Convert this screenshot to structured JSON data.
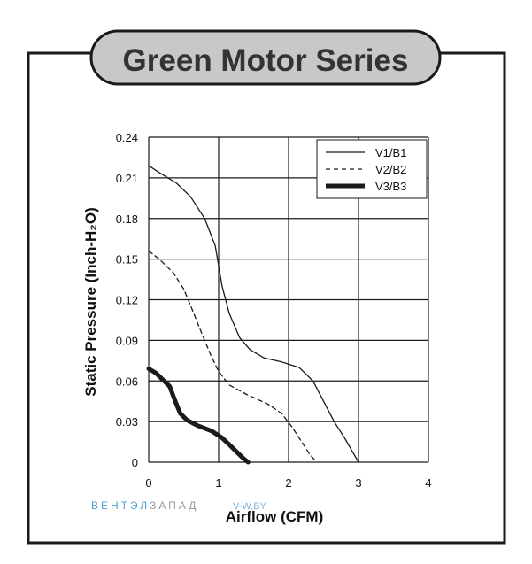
{
  "title": "Green Motor Series",
  "watermark": {
    "brand_part1": "ВЕНТЭЛ",
    "brand_part2": "ЗАПАД",
    "site": "V-W.BY"
  },
  "colors": {
    "frame": "#1a1a1a",
    "title_fill": "#c8c8c8",
    "grid": "#1a1a1a",
    "watermark_blue": "#4f9fd8",
    "watermark_gray": "#9a9a9a"
  },
  "chart_data": {
    "type": "line",
    "title": "",
    "xlabel": "Airflow (CFM)",
    "ylabel": "Static Pressure (Inch-H₂O)",
    "xlim": [
      0,
      4
    ],
    "ylim": [
      0,
      0.24
    ],
    "x_ticks": [
      "0",
      "1",
      "2",
      "3",
      "4"
    ],
    "y_ticks": [
      "0",
      "0.03",
      "0.06",
      "0.09",
      "0.12",
      "0.15",
      "0.18",
      "0.21",
      "0.24"
    ],
    "grid": true,
    "legend_position": "top-right",
    "series": [
      {
        "name": "V1/B1",
        "style": "solid-thin",
        "x": [
          0,
          0.15,
          0.4,
          0.6,
          0.8,
          0.95,
          1.05,
          1.15,
          1.3,
          1.45,
          1.65,
          1.9,
          2.15,
          2.35,
          2.5,
          2.65,
          2.8,
          3.0
        ],
        "y": [
          0.219,
          0.214,
          0.206,
          0.196,
          0.18,
          0.16,
          0.13,
          0.11,
          0.092,
          0.083,
          0.077,
          0.074,
          0.07,
          0.06,
          0.045,
          0.03,
          0.018,
          0.0
        ]
      },
      {
        "name": "V2/B2",
        "style": "dashed",
        "x": [
          0,
          0.15,
          0.35,
          0.5,
          0.62,
          0.72,
          0.8,
          0.88,
          1.0,
          1.15,
          1.4,
          1.7,
          1.9,
          2.05,
          2.2,
          2.3,
          2.4
        ],
        "y": [
          0.156,
          0.15,
          0.14,
          0.128,
          0.113,
          0.1,
          0.09,
          0.08,
          0.067,
          0.057,
          0.05,
          0.043,
          0.036,
          0.026,
          0.014,
          0.006,
          0.0
        ]
      },
      {
        "name": "V3/B3",
        "style": "solid-thick",
        "x": [
          0,
          0.1,
          0.3,
          0.38,
          0.45,
          0.55,
          0.7,
          0.9,
          1.05,
          1.15,
          1.25,
          1.35,
          1.42
        ],
        "y": [
          0.069,
          0.066,
          0.056,
          0.045,
          0.036,
          0.031,
          0.027,
          0.023,
          0.018,
          0.013,
          0.008,
          0.003,
          0.0
        ]
      }
    ]
  }
}
